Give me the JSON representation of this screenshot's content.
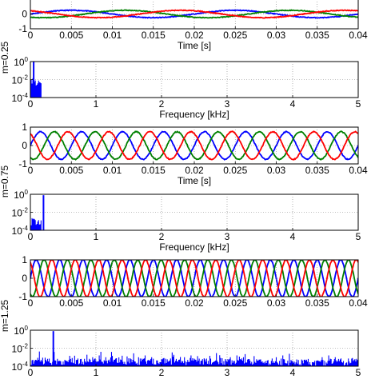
{
  "chart_data": [
    {
      "type": "line",
      "group_label": "m=0.25",
      "xlabel": "Time [s]",
      "ylabel": "",
      "xlim": [
        0,
        0.04
      ],
      "ylim": [
        -1,
        1
      ],
      "xticks": [
        "0",
        "0.005",
        "0.01",
        "0.015",
        "0.02",
        "0.025",
        "0.03",
        "0.035",
        "0.04"
      ],
      "yticks": [
        "-1",
        "0"
      ],
      "grid": true,
      "series_model": {
        "amplitude": 0.25,
        "frequency_hz": 50,
        "colors": [
          "#0000ff",
          "#008000",
          "#ff0000"
        ],
        "phases_deg": [
          0,
          -120,
          120
        ]
      },
      "series": [
        {
          "name": "",
          "color": "#0000ff",
          "x": [
            0,
            0.0025,
            0.005,
            0.0075,
            0.01,
            0.0125,
            0.015,
            0.0175,
            0.02,
            0.025,
            0.03,
            0.035,
            0.04
          ],
          "values": [
            0,
            0.18,
            0.25,
            0.18,
            0,
            -0.18,
            -0.25,
            -0.18,
            0,
            0.25,
            0,
            -0.25,
            0
          ]
        }
      ]
    },
    {
      "type": "bar",
      "group_label": "m=0.25",
      "xlabel": "Frequency [kHz]",
      "xlim": [
        0,
        5
      ],
      "ylim_log10": [
        -4,
        0
      ],
      "xticks": [
        "0",
        "1",
        "2",
        "3",
        "4",
        "5"
      ],
      "yticks": [
        "10^0",
        "10^-2",
        "10^-4"
      ],
      "grid": true,
      "spectrum_model": {
        "fundamental_khz": 0.05,
        "fundamental_log10": 0,
        "noise_start_log10": -2.5,
        "noise_end_log10": -3.7,
        "harmonic_peaks": []
      }
    },
    {
      "type": "line",
      "group_label": "m=0.75",
      "xlabel": "Time [s]",
      "ylabel": "",
      "xlim": [
        0,
        0.04
      ],
      "ylim": [
        -1,
        1
      ],
      "xticks": [
        "0",
        "0.005",
        "0.01",
        "0.015",
        "0.02",
        "0.025",
        "0.03",
        "0.035",
        "0.04"
      ],
      "yticks": [
        "1",
        "0",
        "-1"
      ],
      "grid": true,
      "series_model": {
        "amplitude": 0.75,
        "frequency_hz": 200,
        "colors": [
          "#0000ff",
          "#008000",
          "#ff0000"
        ],
        "phases_deg": [
          0,
          -120,
          120
        ]
      },
      "series": [
        {
          "name": "",
          "color": "#0000ff",
          "x": [
            0,
            0.00125,
            0.0025,
            0.00375,
            0.005
          ],
          "values": [
            0,
            0.75,
            0,
            -0.75,
            0
          ]
        }
      ]
    },
    {
      "type": "bar",
      "group_label": "m=0.75",
      "xlabel": "Frequency [kHz]",
      "xlim": [
        0,
        5
      ],
      "ylim_log10": [
        -4,
        0
      ],
      "xticks": [
        "0",
        "1",
        "2",
        "3",
        "4",
        "5"
      ],
      "yticks": [
        "10^0",
        "10^-2",
        "10^-4"
      ],
      "grid": true,
      "spectrum_model": {
        "fundamental_khz": 0.2,
        "fundamental_log10": -0.1,
        "noise_start_log10": -3.2,
        "noise_end_log10": -3.5,
        "harmonic_peaks": []
      }
    },
    {
      "type": "line",
      "group_label": "m=1.25",
      "xlabel": "",
      "ylabel": "",
      "xlim": [
        0,
        0.04
      ],
      "ylim": [
        -1,
        1
      ],
      "xticks": [
        "0",
        "0.005",
        "0.01",
        "0.015",
        "0.02",
        "0.025",
        "0.03",
        "0.035",
        "0.04"
      ],
      "yticks": [
        "1",
        "0",
        "-1"
      ],
      "grid": true,
      "series_model": {
        "amplitude": 1.0,
        "frequency_hz": 350,
        "colors": [
          "#0000ff",
          "#008000",
          "#ff0000"
        ],
        "phases_deg": [
          0,
          -120,
          120
        ]
      },
      "series": [
        {
          "name": "",
          "color": "#0000ff",
          "x": [
            0,
            0.000714,
            0.001429,
            0.002143,
            0.002857
          ],
          "values": [
            0,
            1,
            0,
            -1,
            0
          ]
        }
      ]
    },
    {
      "type": "bar",
      "group_label": "m=1.25",
      "xlabel": "",
      "xlim": [
        0,
        5
      ],
      "ylim_log10": [
        -4,
        0
      ],
      "xticks": [
        "0",
        "1",
        "2",
        "3",
        "4",
        "5"
      ],
      "yticks": [
        "10^0",
        "10^-2",
        "10^-4"
      ],
      "grid": true,
      "spectrum_model": {
        "fundamental_khz": 0.35,
        "fundamental_log10": -0.1,
        "noise_start_log10": -3.6,
        "noise_end_log10": -3.7,
        "harmonic_peaks": [
          1.05,
          1.75,
          2.45,
          3.15,
          3.85,
          4.55
        ],
        "harmonic_log10": -2.8
      }
    }
  ]
}
